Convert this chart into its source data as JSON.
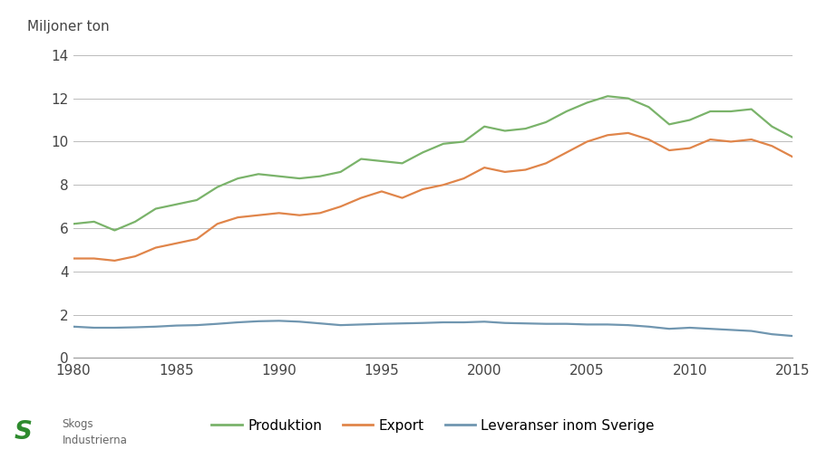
{
  "years": [
    1980,
    1981,
    1982,
    1983,
    1984,
    1985,
    1986,
    1987,
    1988,
    1989,
    1990,
    1991,
    1992,
    1993,
    1994,
    1995,
    1996,
    1997,
    1998,
    1999,
    2000,
    2001,
    2002,
    2003,
    2004,
    2005,
    2006,
    2007,
    2008,
    2009,
    2010,
    2011,
    2012,
    2013,
    2014,
    2015
  ],
  "produktion": [
    6.2,
    6.3,
    5.9,
    6.3,
    6.9,
    7.1,
    7.3,
    7.9,
    8.3,
    8.5,
    8.4,
    8.3,
    8.4,
    8.6,
    9.2,
    9.1,
    9.0,
    9.5,
    9.9,
    10.0,
    10.7,
    10.5,
    10.6,
    10.9,
    11.4,
    11.8,
    12.1,
    12.0,
    11.6,
    10.8,
    11.0,
    11.4,
    11.4,
    11.5,
    10.7,
    10.2
  ],
  "export": [
    4.6,
    4.6,
    4.5,
    4.7,
    5.1,
    5.3,
    5.5,
    6.2,
    6.5,
    6.6,
    6.7,
    6.6,
    6.7,
    7.0,
    7.4,
    7.7,
    7.4,
    7.8,
    8.0,
    8.3,
    8.8,
    8.6,
    8.7,
    9.0,
    9.5,
    10.0,
    10.3,
    10.4,
    10.1,
    9.6,
    9.7,
    10.1,
    10.0,
    10.1,
    9.8,
    9.3
  ],
  "leveranser": [
    1.45,
    1.4,
    1.4,
    1.42,
    1.45,
    1.5,
    1.52,
    1.58,
    1.65,
    1.7,
    1.72,
    1.68,
    1.6,
    1.52,
    1.55,
    1.58,
    1.6,
    1.62,
    1.65,
    1.65,
    1.68,
    1.62,
    1.6,
    1.58,
    1.58,
    1.55,
    1.55,
    1.52,
    1.45,
    1.35,
    1.4,
    1.35,
    1.3,
    1.25,
    1.1,
    1.02
  ],
  "produktion_color": "#7ab36a",
  "export_color": "#e0854a",
  "leveranser_color": "#7096b0",
  "background_color": "#ffffff",
  "ylabel": "Miljoner ton",
  "ylim": [
    0,
    14
  ],
  "yticks": [
    0,
    2,
    4,
    6,
    8,
    10,
    12,
    14
  ],
  "xlim": [
    1980,
    2015
  ],
  "xticks": [
    1980,
    1985,
    1990,
    1995,
    2000,
    2005,
    2010,
    2015
  ],
  "legend_labels": [
    "Produktion",
    "Export",
    "Leveranser inom Sverige"
  ],
  "line_width": 1.6,
  "grid_color": "#bbbbbb",
  "tick_label_fontsize": 11,
  "ylabel_fontsize": 11
}
